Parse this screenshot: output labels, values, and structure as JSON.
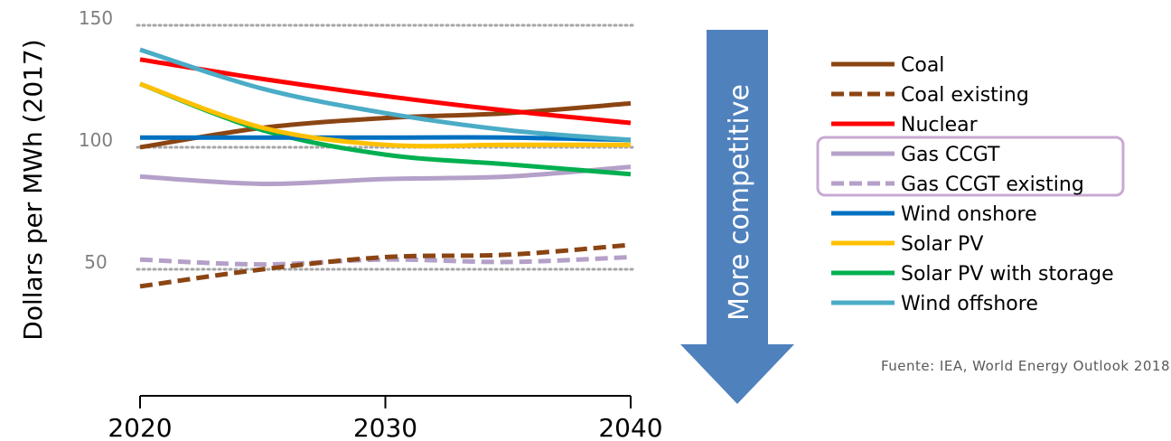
{
  "chart_data": {
    "type": "line",
    "title": "",
    "ylabel": "Dollars per MWh (2017)",
    "xlabel": "",
    "x": [
      2020,
      2025,
      2030,
      2035,
      2040
    ],
    "x_ticks": [
      "2020",
      "2030",
      "2040"
    ],
    "y_ticks": [
      "50",
      "100",
      "150"
    ],
    "y_tick_values": [
      50,
      100,
      150
    ],
    "ylim": [
      10,
      155
    ],
    "grid": "dotted horizontal at 50, 100, 150",
    "legend_position": "right",
    "series": [
      {
        "name": "Coal",
        "color": "#8B4513",
        "dashed": false,
        "values": [
          100,
          108,
          112,
          114,
          118
        ]
      },
      {
        "name": "Coal existing",
        "color": "#8B4513",
        "dashed": true,
        "values": [
          43,
          50,
          55,
          56,
          60
        ]
      },
      {
        "name": "Nuclear",
        "color": "#FF0000",
        "dashed": false,
        "values": [
          136,
          128,
          121,
          115,
          110
        ]
      },
      {
        "name": "Gas CCGT",
        "color": "#B4A0C8",
        "dashed": false,
        "values": [
          88,
          85,
          87,
          88,
          92
        ]
      },
      {
        "name": "Gas CCGT existing",
        "color": "#B4A0C8",
        "dashed": true,
        "values": [
          54,
          52,
          54,
          53,
          55
        ]
      },
      {
        "name": "Wind onshore",
        "color": "#0070C0",
        "dashed": false,
        "values": [
          104,
          104,
          104,
          104,
          103
        ]
      },
      {
        "name": "Solar PV",
        "color": "#FFC000",
        "dashed": false,
        "values": [
          126,
          108,
          101,
          101,
          101
        ]
      },
      {
        "name": "Solar PV with storage",
        "color": "#00B050",
        "dashed": false,
        "values": [
          126,
          107,
          97,
          93,
          89
        ]
      },
      {
        "name": "Wind offshore",
        "color": "#4BACC6",
        "dashed": false,
        "values": [
          140,
          124,
          114,
          107,
          103
        ]
      }
    ],
    "highlight_box_series": [
      "Gas CCGT",
      "Gas CCGT existing"
    ],
    "highlight_box_color": "#C9A9D3",
    "arrow": {
      "label": "More competitive",
      "color": "#4F81BD"
    }
  },
  "source": "Fuente: IEA, World Energy Outlook 2018"
}
